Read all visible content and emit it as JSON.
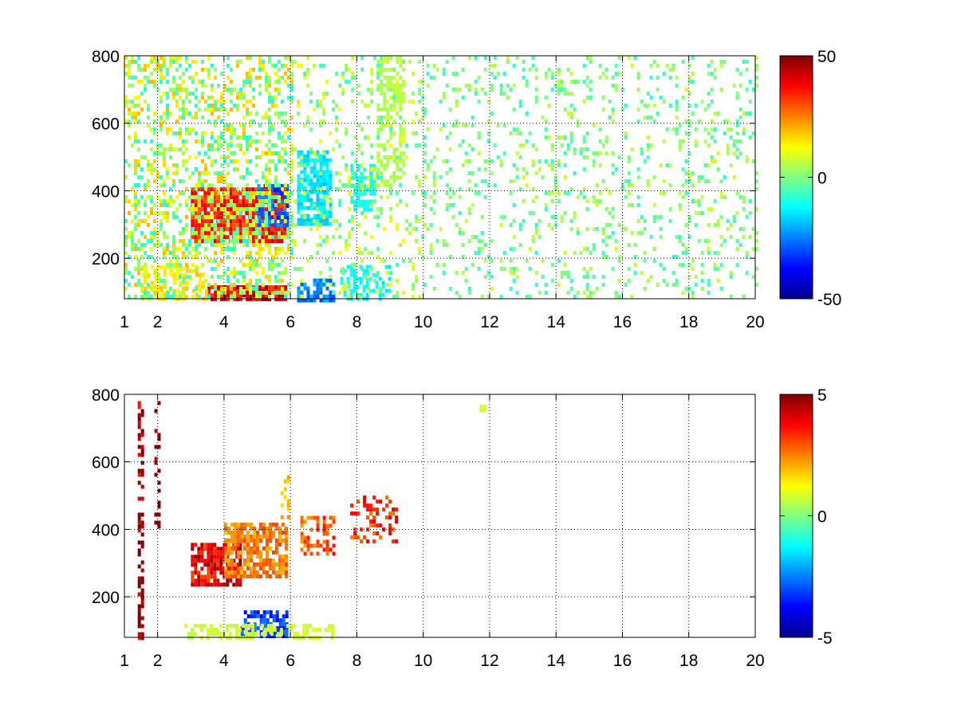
{
  "figure": {
    "background": "#ffffff",
    "grid": true,
    "colormap": "jet"
  },
  "chart_data": [
    {
      "type": "heatmap",
      "title": "",
      "xlabel": "",
      "ylabel": "",
      "xlim": [
        1,
        20
      ],
      "ylim": [
        80,
        800
      ],
      "x_ticks": [
        1,
        2,
        4,
        6,
        8,
        10,
        12,
        14,
        16,
        18,
        20
      ],
      "y_ticks": [
        200,
        400,
        600,
        800
      ],
      "grid": true,
      "colorbar": {
        "range": [
          -50,
          50
        ],
        "ticks": [
          50,
          0,
          -50
        ],
        "placement": "right"
      },
      "features": [
        {
          "kind": "blob",
          "x": [
            3.0,
            5.8
          ],
          "y": [
            250,
            410
          ],
          "value": 35,
          "slope": 0.6,
          "density": 0.9
        },
        {
          "kind": "blob",
          "x": [
            5.0,
            5.9
          ],
          "y": [
            300,
            420
          ],
          "value": -28,
          "density": 0.7
        },
        {
          "kind": "blob",
          "x": [
            3.5,
            5.9
          ],
          "y": [
            80,
            120
          ],
          "value": 40,
          "density": 0.9
        },
        {
          "kind": "blob",
          "x": [
            1.5,
            3.5
          ],
          "y": [
            80,
            180
          ],
          "value": 15,
          "density": 0.5
        },
        {
          "kind": "blob",
          "x": [
            6.2,
            7.2
          ],
          "y": [
            300,
            520
          ],
          "value": -15,
          "density": 0.75
        },
        {
          "kind": "blob",
          "x": [
            6.2,
            7.3
          ],
          "y": [
            80,
            140
          ],
          "value": -25,
          "density": 0.7
        },
        {
          "kind": "blob",
          "x": [
            7.8,
            8.6
          ],
          "y": [
            340,
            480
          ],
          "value": -10,
          "density": 0.6
        },
        {
          "kind": "blob",
          "x": [
            8.6,
            9.4
          ],
          "y": [
            420,
            800
          ],
          "value": 5,
          "density": 0.5
        },
        {
          "kind": "blob",
          "x": [
            7.5,
            9.0
          ],
          "y": [
            80,
            180
          ],
          "value": -12,
          "density": 0.5
        },
        {
          "kind": "noise",
          "x": [
            1,
            6
          ],
          "y": [
            80,
            800
          ],
          "value": 5,
          "spread": 15,
          "density": 0.35
        },
        {
          "kind": "noise",
          "x": [
            6,
            10
          ],
          "y": [
            80,
            800
          ],
          "value": 3,
          "spread": 10,
          "density": 0.15
        },
        {
          "kind": "noise",
          "x": [
            10,
            20
          ],
          "y": [
            80,
            800
          ],
          "value": 0,
          "spread": 8,
          "density": 0.14
        }
      ]
    },
    {
      "type": "heatmap",
      "title": "",
      "xlabel": "",
      "ylabel": "",
      "xlim": [
        1,
        20
      ],
      "ylim": [
        80,
        800
      ],
      "x_ticks": [
        1,
        2,
        4,
        6,
        8,
        10,
        12,
        14,
        16,
        18,
        20
      ],
      "y_ticks": [
        200,
        400,
        600,
        800
      ],
      "grid": true,
      "colorbar": {
        "range": [
          -5,
          5
        ],
        "ticks": [
          5,
          0,
          -5
        ],
        "placement": "right"
      },
      "features": [
        {
          "kind": "blob",
          "x": [
            3.0,
            4.5
          ],
          "y": [
            240,
            360
          ],
          "value": 4,
          "slope": 0.5,
          "density": 0.8
        },
        {
          "kind": "blob",
          "x": [
            4.0,
            5.9
          ],
          "y": [
            260,
            420
          ],
          "value": 2.5,
          "slope": 0.5,
          "density": 0.75
        },
        {
          "kind": "blob",
          "x": [
            6.3,
            7.3
          ],
          "y": [
            330,
            440
          ],
          "value": 3,
          "density": 0.5
        },
        {
          "kind": "blob",
          "x": [
            7.8,
            9.2
          ],
          "y": [
            370,
            500
          ],
          "value": 3.3,
          "density": 0.35
        },
        {
          "kind": "blob",
          "x": [
            4.5,
            5.9
          ],
          "y": [
            80,
            160
          ],
          "value": -3.2,
          "density": 0.7
        },
        {
          "kind": "blob",
          "x": [
            2.8,
            7.3
          ],
          "y": [
            80,
            120
          ],
          "value": 0.8,
          "density": 0.5
        },
        {
          "kind": "blob",
          "x": [
            1.4,
            1.5
          ],
          "y": [
            80,
            780
          ],
          "value": 5,
          "density": 0.5
        },
        {
          "kind": "blob",
          "x": [
            1.9,
            2.0
          ],
          "y": [
            400,
            780
          ],
          "value": 5,
          "density": 0.3
        },
        {
          "kind": "blob",
          "x": [
            11.7,
            11.8
          ],
          "y": [
            750,
            770
          ],
          "value": 0.8,
          "density": 1.0
        },
        {
          "kind": "blob",
          "x": [
            5.7,
            5.9
          ],
          "y": [
            440,
            560
          ],
          "value": 2,
          "density": 0.4
        }
      ]
    }
  ]
}
